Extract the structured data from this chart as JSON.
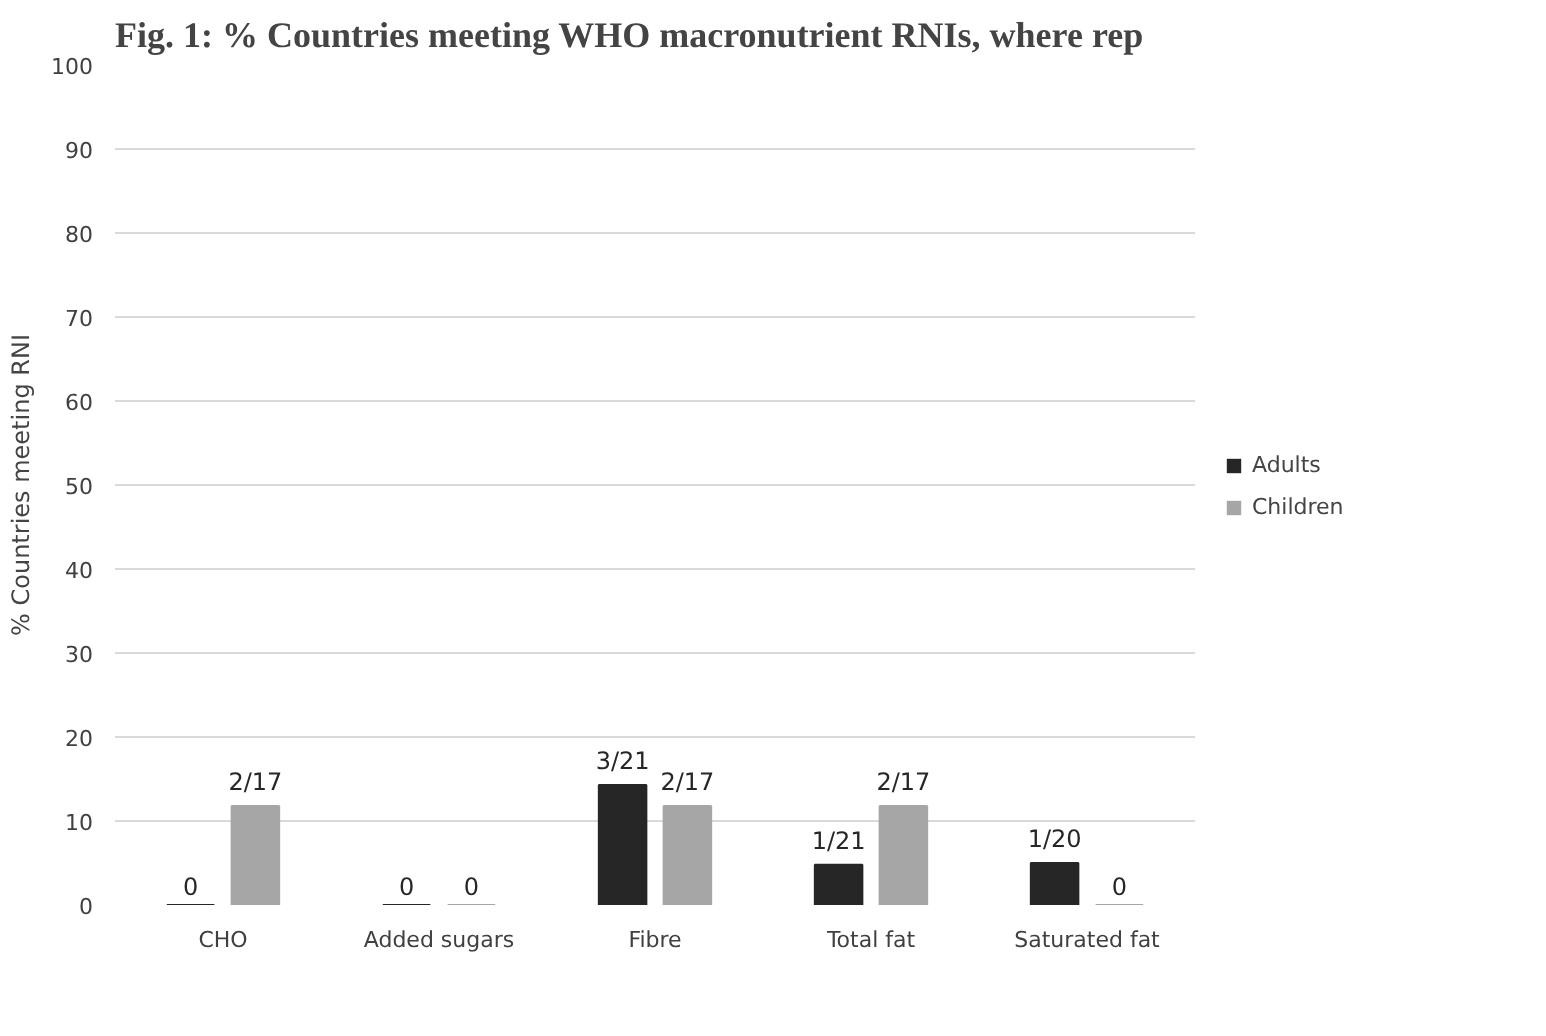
{
  "chart_data": {
    "type": "bar",
    "title": "Fig. 1: % Countries meeting WHO macronutrient RNIs, where rep",
    "ylabel": "% Countries meeting RNI",
    "categories": [
      "CHO",
      "Added sugars",
      "Fibre",
      "Total fat",
      "Saturated fat"
    ],
    "series": [
      {
        "name": "Adults",
        "color": "#262626",
        "values": [
          0,
          0,
          14.3,
          4.8,
          5
        ],
        "value_labels": [
          "0",
          "0",
          "3/21",
          "1/21",
          "1/20"
        ]
      },
      {
        "name": "Children",
        "color": "#a6a6a6",
        "values": [
          11.8,
          0,
          11.8,
          11.8,
          0
        ],
        "value_labels": [
          "2/17",
          "0",
          "2/17",
          "2/17",
          "0"
        ]
      }
    ],
    "ylim": [
      0,
      100
    ],
    "yticks": [
      0,
      10,
      20,
      30,
      40,
      50,
      60,
      70,
      80,
      90,
      100
    ],
    "grid": "y",
    "legend": "right"
  }
}
